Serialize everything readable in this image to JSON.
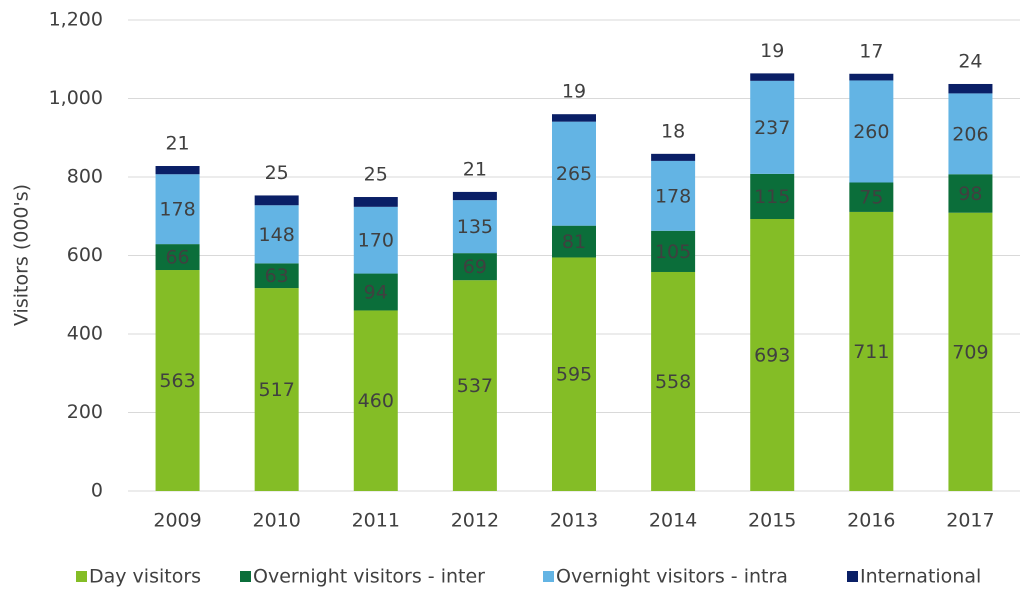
{
  "chart_data": {
    "type": "stacked_bar",
    "y_axis_label": "Visitors (000's)",
    "categories": [
      "2009",
      "2010",
      "2011",
      "2012",
      "2013",
      "2014",
      "2015",
      "2016",
      "2017"
    ],
    "series": [
      {
        "name": "Day visitors",
        "color": "#84bd26",
        "values": [
          563,
          517,
          460,
          537,
          595,
          558,
          693,
          711,
          709
        ]
      },
      {
        "name": "Overnight visitors - inter",
        "color": "#0b6e3a",
        "values": [
          66,
          63,
          94,
          69,
          81,
          105,
          115,
          75,
          98
        ]
      },
      {
        "name": "Overnight visitors - intra",
        "color": "#63b4e4",
        "values": [
          178,
          148,
          170,
          135,
          265,
          178,
          237,
          260,
          206
        ]
      },
      {
        "name": "International",
        "color": "#0a1f66",
        "values": [
          21,
          25,
          25,
          21,
          19,
          18,
          19,
          17,
          24
        ]
      }
    ],
    "ylim": [
      0,
      1200
    ],
    "yticks": [
      0,
      200,
      400,
      600,
      800,
      {
        "value": 1000,
        "label": "1,000"
      },
      {
        "value": 1200,
        "label": "1,200"
      }
    ],
    "grid": true,
    "legend": "bottom"
  }
}
